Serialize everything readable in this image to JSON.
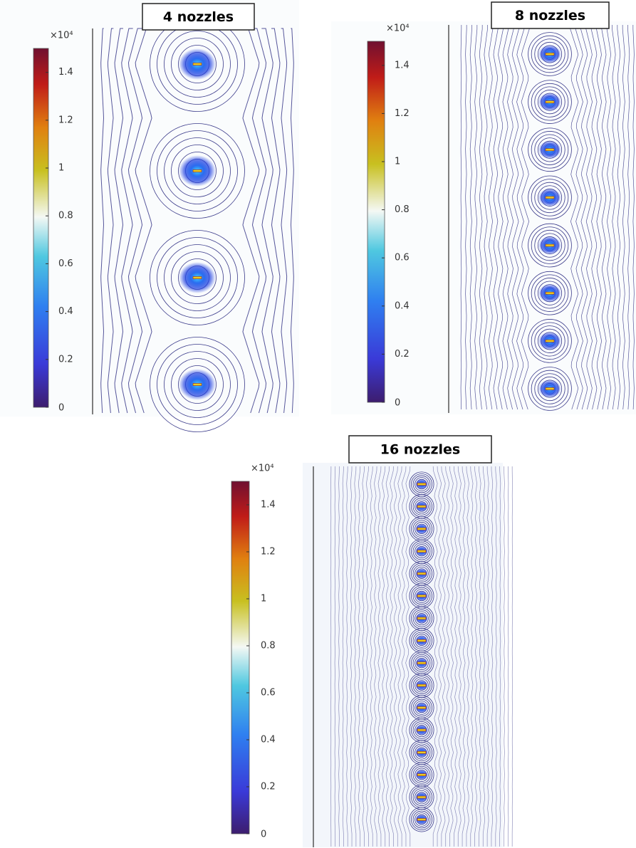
{
  "chart_data": [
    {
      "type": "contour",
      "title": "4 nozzles",
      "colorbar_label": "×10⁴",
      "clim": [
        0,
        1.5
      ],
      "cticks": [
        0,
        0.2,
        0.4,
        0.6,
        0.8,
        1,
        1.2,
        1.4
      ]
    },
    {
      "type": "contour",
      "title": "8 nozzles",
      "colorbar_label": "×10⁴",
      "clim": [
        0,
        1.5
      ],
      "cticks": [
        0,
        0.2,
        0.4,
        0.6,
        0.8,
        1,
        1.2,
        1.4
      ]
    },
    {
      "type": "contour",
      "title": "16 nozzles",
      "colorbar_label": "×10⁴",
      "clim": [
        0,
        1.5
      ],
      "cticks": [
        0,
        0.2,
        0.4,
        0.6,
        0.8,
        1,
        1.2,
        1.4
      ]
    }
  ]
}
